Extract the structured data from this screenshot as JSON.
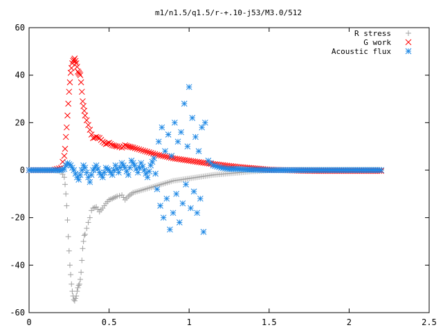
{
  "chart_data": {
    "type": "scatter",
    "title": "m1/n1.5/q1.5/r-+.10-j53/M3.0/512",
    "xlabel": "",
    "ylabel": "",
    "xlim": [
      0,
      2.5
    ],
    "ylim": [
      -60,
      60
    ],
    "xticks": [
      "0",
      "0.5",
      "1",
      "1.5",
      "2",
      "2.5"
    ],
    "yticks": [
      "-60",
      "-40",
      "-20",
      "0",
      "20",
      "40",
      "60"
    ],
    "grid": false,
    "legend_position": "top-right",
    "series": [
      {
        "name": "R stress",
        "marker": "plus",
        "color": "#a0a0a0",
        "x": [
          0.0,
          0.05,
          0.1,
          0.15,
          0.2,
          0.22,
          0.225,
          0.23,
          0.235,
          0.24,
          0.245,
          0.25,
          0.255,
          0.26,
          0.265,
          0.27,
          0.275,
          0.28,
          0.285,
          0.29,
          0.295,
          0.3,
          0.305,
          0.31,
          0.315,
          0.32,
          0.325,
          0.33,
          0.335,
          0.34,
          0.345,
          0.35,
          0.36,
          0.37,
          0.38,
          0.39,
          0.4,
          0.42,
          0.44,
          0.46,
          0.48,
          0.5,
          0.52,
          0.55,
          0.58,
          0.6,
          0.62,
          0.65,
          0.7,
          0.75,
          0.8,
          0.85,
          0.9,
          0.95,
          1.0,
          1.05,
          1.1,
          1.15,
          1.2,
          1.25,
          1.3,
          1.35,
          1.4,
          1.45,
          1.5,
          1.6,
          1.7,
          1.8,
          1.9,
          2.0,
          2.1,
          2.2
        ],
        "y": [
          0,
          0,
          0,
          0,
          -0.5,
          -3,
          -6,
          -10,
          -15,
          -21,
          -28,
          -34,
          -40,
          -44,
          -48,
          -51,
          -53,
          -54.5,
          -55,
          -54,
          -53,
          -51,
          -49.5,
          -48.5,
          -48,
          -46,
          -43,
          -38,
          -33,
          -30,
          -27.5,
          -27,
          -24.5,
          -22,
          -20,
          -17,
          -16,
          -15.5,
          -17.5,
          -16,
          -14,
          -12.5,
          -12,
          -11,
          -10.5,
          -12.5,
          -11,
          -9.5,
          -8.5,
          -7.5,
          -6.5,
          -5.5,
          -4.5,
          -4,
          -3.5,
          -3,
          -2.5,
          -2,
          -1.7,
          -1.4,
          -1.1,
          -0.8,
          -0.5,
          -0.3,
          0,
          0.1,
          0.2,
          0.2,
          0.2,
          0.2,
          0.2,
          0.2
        ]
      },
      {
        "name": "G work",
        "marker": "cross",
        "color": "#ff0000",
        "x": [
          0.0,
          0.05,
          0.1,
          0.15,
          0.2,
          0.22,
          0.225,
          0.23,
          0.235,
          0.24,
          0.245,
          0.25,
          0.255,
          0.26,
          0.265,
          0.27,
          0.275,
          0.28,
          0.285,
          0.29,
          0.295,
          0.3,
          0.305,
          0.31,
          0.315,
          0.32,
          0.325,
          0.33,
          0.335,
          0.34,
          0.345,
          0.35,
          0.36,
          0.37,
          0.38,
          0.39,
          0.4,
          0.42,
          0.44,
          0.46,
          0.48,
          0.5,
          0.52,
          0.55,
          0.58,
          0.6,
          0.62,
          0.65,
          0.7,
          0.75,
          0.8,
          0.85,
          0.9,
          0.95,
          1.0,
          1.05,
          1.1,
          1.15,
          1.2,
          1.25,
          1.3,
          1.35,
          1.4,
          1.45,
          1.5,
          1.6,
          1.7,
          1.8,
          1.9,
          2.0,
          2.1,
          2.2
        ],
        "y": [
          0,
          0,
          0,
          0,
          1,
          6,
          9,
          14,
          18,
          23,
          28,
          33,
          37,
          41,
          43,
          45,
          46,
          46.5,
          47,
          46,
          45,
          43.5,
          41.5,
          41,
          40.5,
          40,
          37,
          33,
          29,
          27,
          25,
          23,
          21,
          19,
          17,
          15,
          13.5,
          14,
          13.5,
          12,
          11,
          11.5,
          10.5,
          10,
          9.5,
          10.5,
          10,
          9.5,
          8.5,
          7.5,
          6.5,
          5.8,
          5,
          4.5,
          4,
          3.5,
          3,
          2.6,
          2.2,
          1.8,
          1.4,
          1.1,
          0.8,
          0.5,
          0.2,
          0,
          -0.2,
          -0.3,
          -0.3,
          -0.3,
          -0.3,
          -0.3
        ]
      },
      {
        "name": "Acoustic flux",
        "marker": "star",
        "color": "#1e88e5",
        "x": [
          0.0,
          0.05,
          0.1,
          0.15,
          0.2,
          0.22,
          0.23,
          0.24,
          0.25,
          0.26,
          0.27,
          0.28,
          0.29,
          0.3,
          0.31,
          0.32,
          0.33,
          0.34,
          0.35,
          0.36,
          0.37,
          0.38,
          0.39,
          0.4,
          0.42,
          0.44,
          0.46,
          0.48,
          0.5,
          0.52,
          0.54,
          0.56,
          0.58,
          0.6,
          0.62,
          0.64,
          0.66,
          0.68,
          0.7,
          0.72,
          0.74,
          0.76,
          0.78,
          0.8,
          0.81,
          0.82,
          0.83,
          0.84,
          0.85,
          0.86,
          0.87,
          0.88,
          0.89,
          0.9,
          0.91,
          0.92,
          0.93,
          0.94,
          0.95,
          0.96,
          0.97,
          0.98,
          0.99,
          1.0,
          1.01,
          1.02,
          1.03,
          1.04,
          1.05,
          1.06,
          1.07,
          1.08,
          1.09,
          1.1,
          1.12,
          1.15,
          1.2,
          1.25,
          1.3,
          1.35,
          1.4,
          1.45,
          1.5,
          1.6,
          1.7,
          1.8,
          1.9,
          2.0,
          2.1,
          2.2
        ],
        "y": [
          0,
          0,
          0,
          0,
          0,
          0.5,
          2,
          3,
          2.5,
          2,
          1,
          0,
          -1.5,
          -3,
          -4,
          -2,
          0,
          2,
          1,
          -1,
          -3,
          -5,
          -2,
          0,
          2,
          -1,
          -3,
          1,
          0,
          -2,
          2,
          -1,
          3,
          1,
          -2,
          4,
          2,
          -1,
          3,
          0,
          -3,
          2,
          5,
          -8,
          12,
          -15,
          18,
          -20,
          8,
          -12,
          15,
          -25,
          6,
          -18,
          20,
          -10,
          12,
          -22,
          16,
          -14,
          28,
          -6,
          10,
          35,
          -16,
          22,
          -9,
          14,
          -18,
          8,
          -12,
          18,
          -26,
          20,
          4,
          2,
          1,
          0.5,
          0.5,
          0.3,
          0.2,
          0.1,
          0,
          0,
          0,
          0,
          0,
          0,
          0,
          0
        ]
      }
    ]
  }
}
